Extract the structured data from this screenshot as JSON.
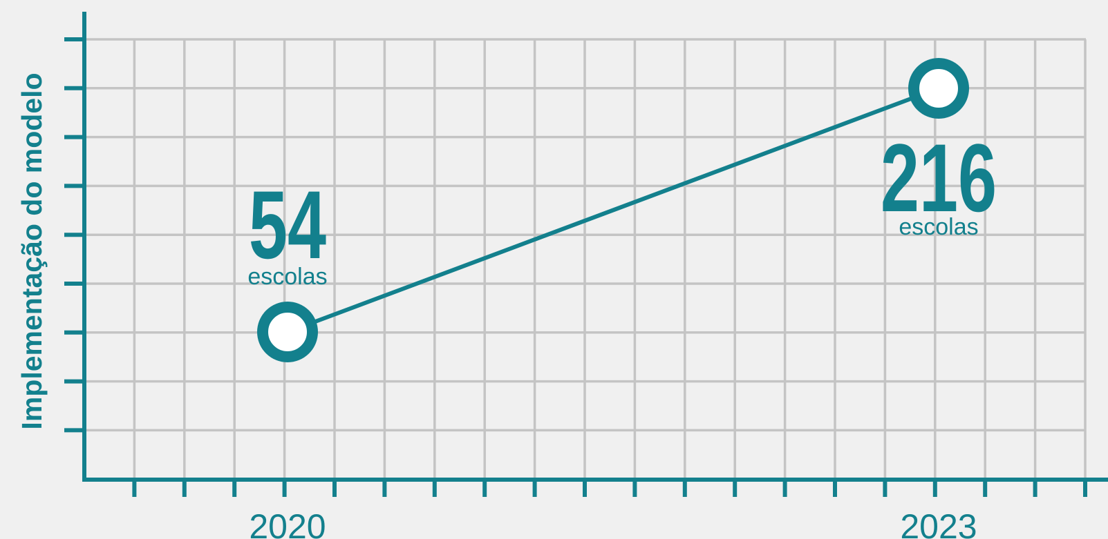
{
  "colors": {
    "accent": "#13808d",
    "grid": "#c4c4c4",
    "background": "#f0f0f0",
    "marker_fill": "#ffffff"
  },
  "chart_data": {
    "type": "line",
    "ylabel": "Implementação do modelo",
    "xlabel": "",
    "grid": true,
    "x_tick_labels": [
      "2020",
      "2023"
    ],
    "series": [
      {
        "points": [
          {
            "x": "2020",
            "value": 54,
            "label": "54",
            "unit": "escolas"
          },
          {
            "x": "2023",
            "value": 216,
            "label": "216",
            "unit": "escolas"
          }
        ]
      }
    ]
  }
}
